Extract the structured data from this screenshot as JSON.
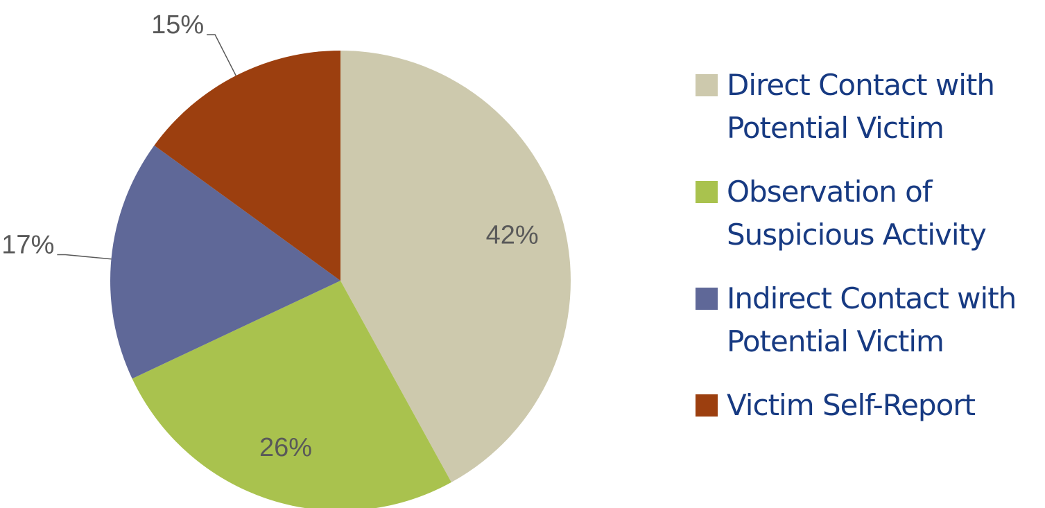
{
  "chart_data": {
    "type": "pie",
    "categories": [
      "Direct Contact with Potential Victim",
      "Observation of Suspicious Activity",
      "Indirect Contact with Potential Victim",
      "Victim Self-Report"
    ],
    "values": [
      42,
      26,
      17,
      15
    ],
    "value_labels": [
      "42%",
      "26%",
      "17%",
      "15%"
    ],
    "colors": [
      "#cdc9ad",
      "#a9c24e",
      "#5f6898",
      "#9c3f0f"
    ],
    "legend": "right"
  }
}
